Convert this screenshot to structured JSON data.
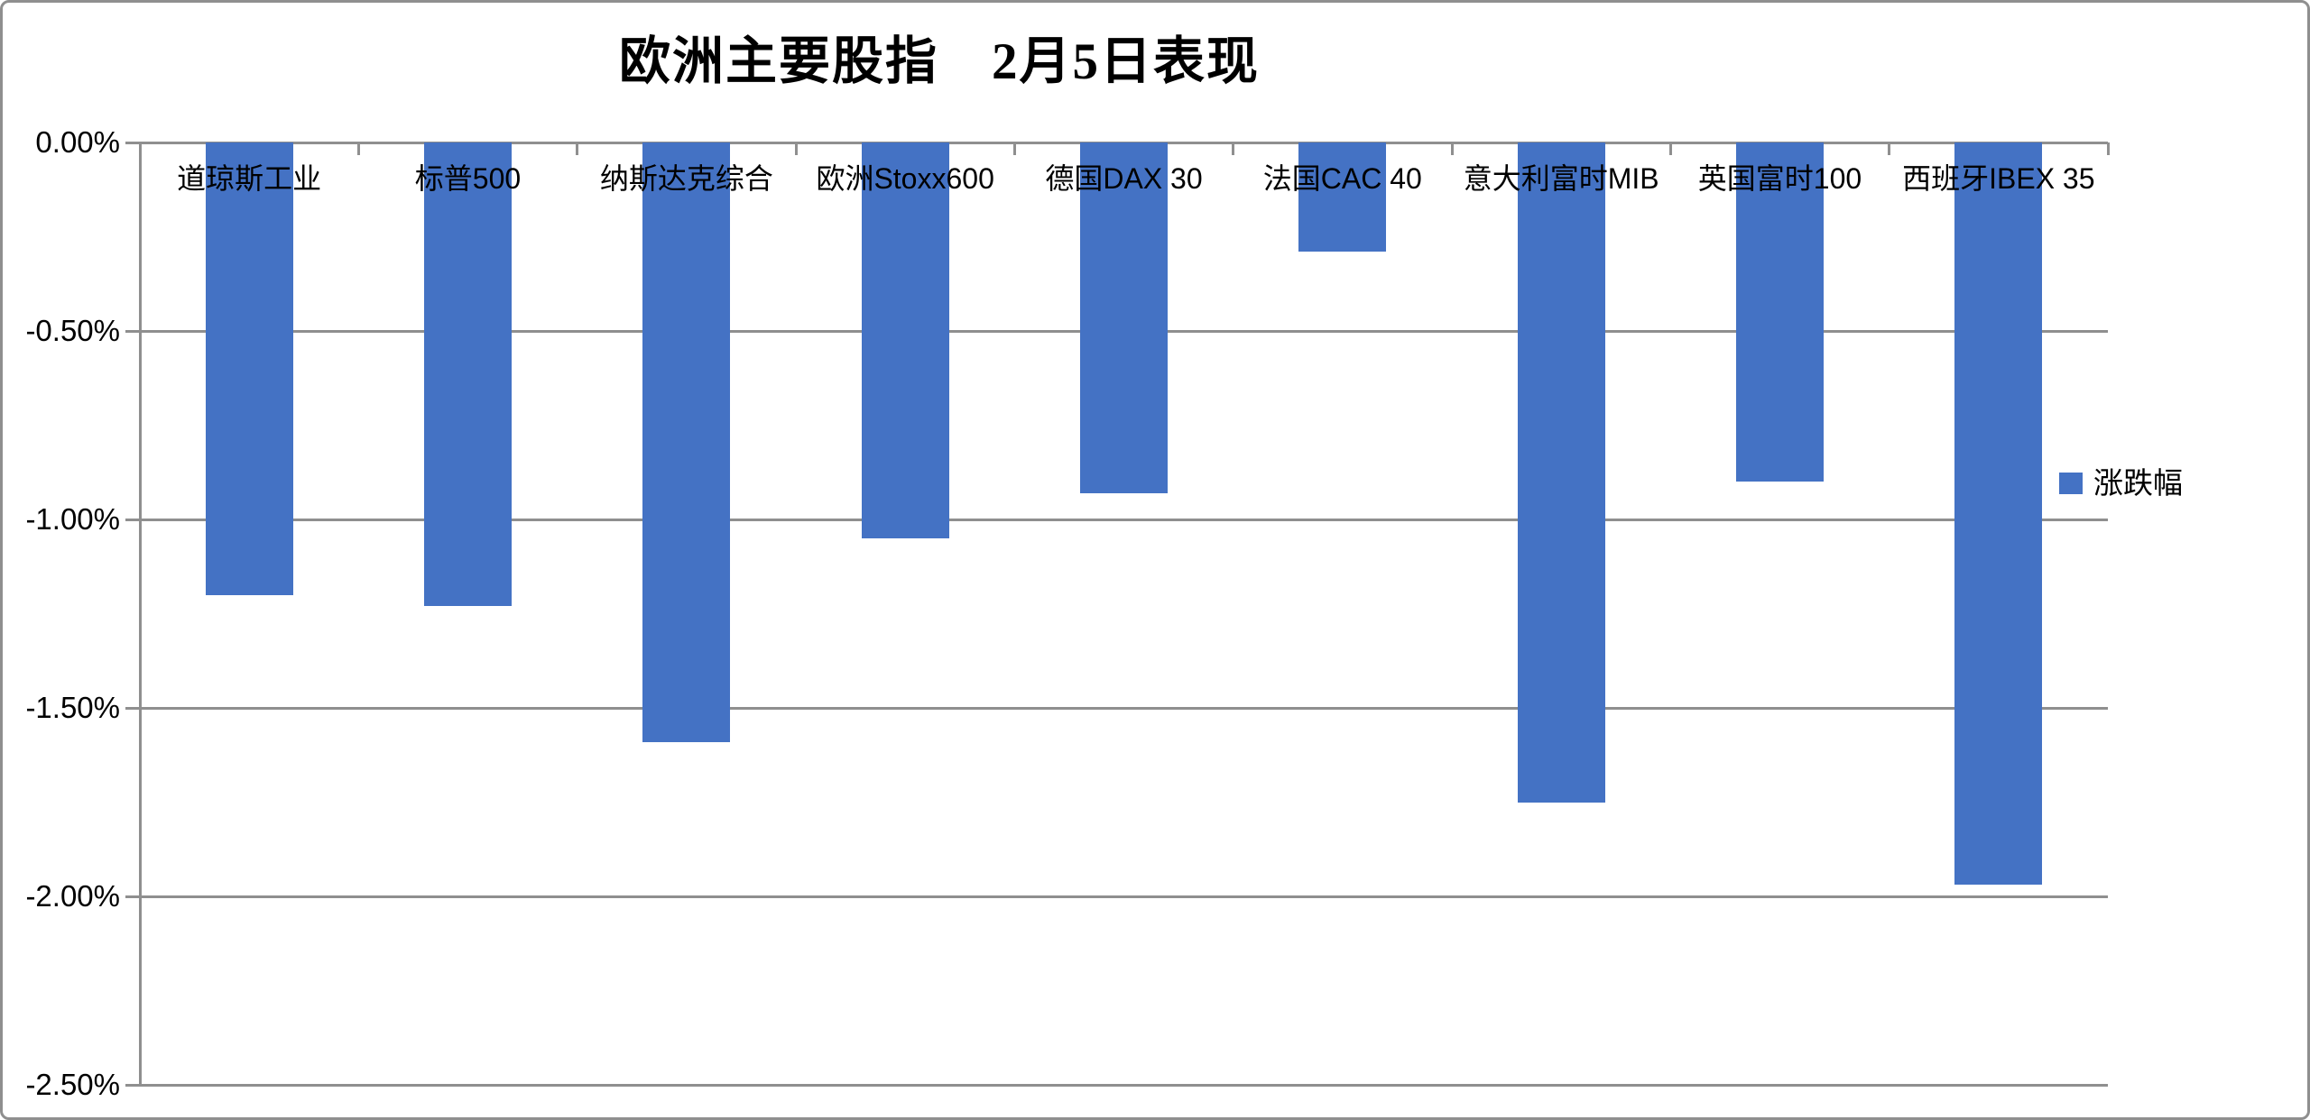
{
  "title": {
    "text": "欧洲主要股指　2月5日表现"
  },
  "legend": {
    "label": "涨跌幅"
  },
  "colors": {
    "bar": "#4472C4",
    "gridline": "#8F8F8F",
    "border": "#8F8F8F",
    "text": "#000000"
  },
  "chart_data": {
    "type": "bar",
    "title": "欧洲主要股指　2月5日表现",
    "categories": [
      "道琼斯工业",
      "标普500",
      "纳斯达克综合",
      "欧洲Stoxx600",
      "德国DAX 30",
      "法国CAC 40",
      "意大利富时MIB",
      "英国富时100",
      "西班牙IBEX 35"
    ],
    "series": [
      {
        "name": "涨跌幅",
        "values": [
          -1.2,
          -1.23,
          -1.59,
          -1.05,
          -0.93,
          -0.29,
          -1.75,
          -0.9,
          -1.97
        ]
      }
    ],
    "xlabel": "",
    "ylabel": "",
    "ylim": [
      -2.5,
      0
    ],
    "ytick_step": 0.5,
    "ytick_labels": [
      "0.00%",
      "-0.50%",
      "-1.00%",
      "-1.50%",
      "-2.00%",
      "-2.50%"
    ],
    "value_suffix": "%",
    "grid": true,
    "legend_position": "right",
    "bar_color": "#4472C4",
    "category_labels_position": "inside-top"
  }
}
